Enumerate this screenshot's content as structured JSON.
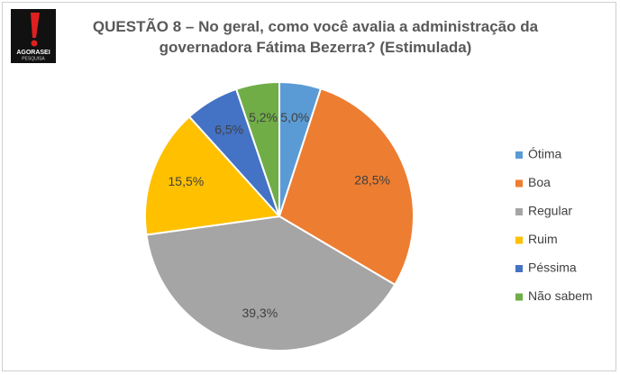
{
  "logo": {
    "name": "AGORASEI",
    "tagline": "PESQUISA"
  },
  "chart_data": {
    "type": "pie",
    "title": "QUESTÃO 8 – No geral, como você avalia a administração da governadora Fátima Bezerra? (Estimulada)",
    "categories": [
      "Ótima",
      "Boa",
      "Regular",
      "Ruim",
      "Péssima",
      "Não sabem"
    ],
    "values": [
      5.0,
      28.5,
      39.3,
      15.5,
      6.5,
      5.2
    ],
    "value_labels": [
      "5,0%",
      "28,5%",
      "39,3%",
      "15,5%",
      "6,5%",
      "5,2%"
    ],
    "colors": [
      "#5b9bd5",
      "#ed7d31",
      "#a5a5a5",
      "#ffc000",
      "#4472c4",
      "#70ad47"
    ],
    "legend": "right"
  }
}
